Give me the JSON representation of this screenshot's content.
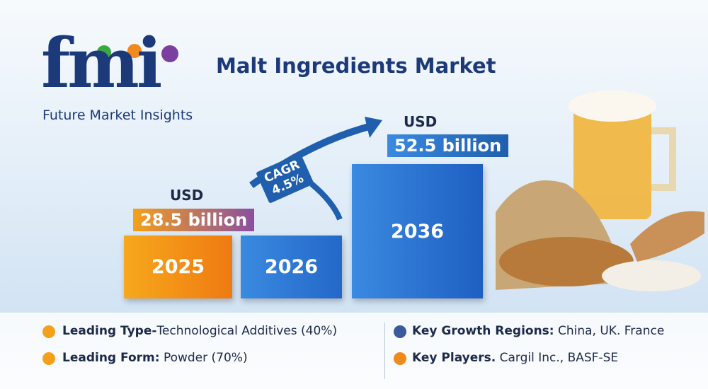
{
  "logo": {
    "letters": "fmi",
    "name": "Future Market Insights"
  },
  "title": "Malt Ingredients Market",
  "bars": [
    {
      "year": "2025",
      "currency": "USD",
      "value": "28.5 billion"
    },
    {
      "year": "2026"
    },
    {
      "year": "2036",
      "currency": "USD",
      "value": "52.5 billion"
    }
  ],
  "cagr": {
    "label": "CAGR",
    "value": "4.5%"
  },
  "facts": [
    {
      "label": "Leading Type-",
      "text": "Technological Additives (40%)"
    },
    {
      "label": "Leading Form:",
      "text": "Powder (70%)"
    },
    {
      "label": "Key Growth Regions:",
      "text": "China, UK. France"
    },
    {
      "label": "Key Players.",
      "text": "Cargil Inc., BASF-SE"
    }
  ]
}
